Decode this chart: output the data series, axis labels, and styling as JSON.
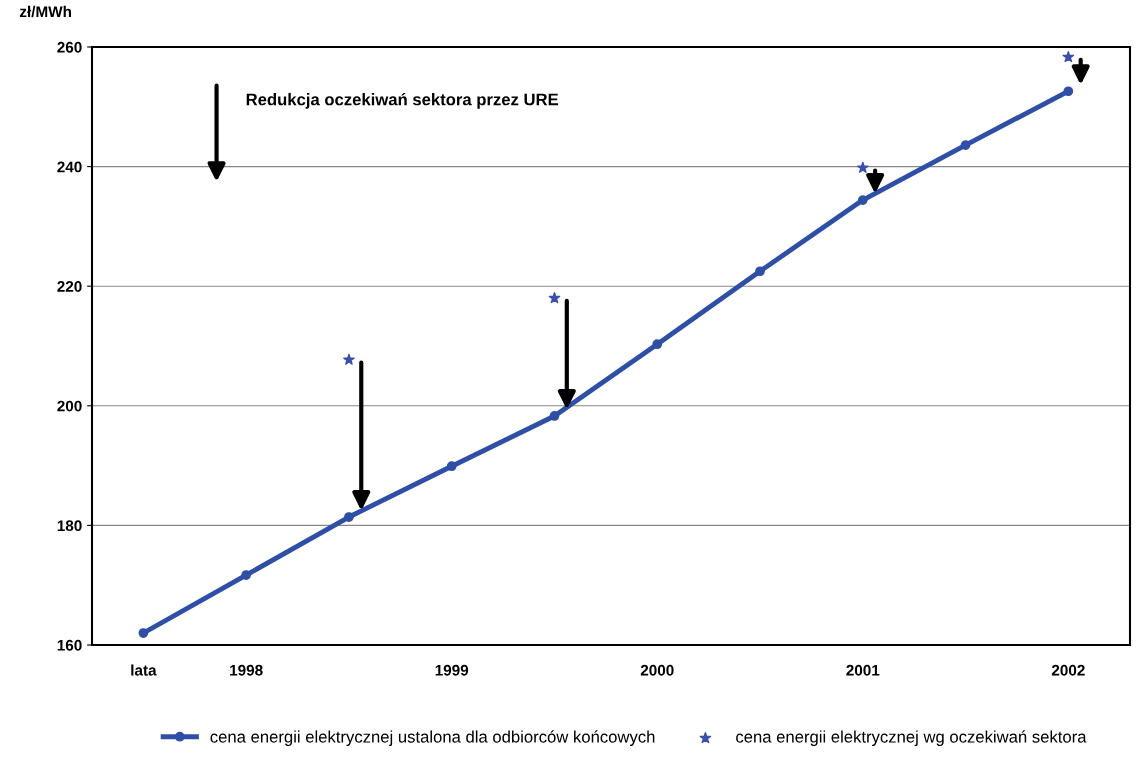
{
  "chart_data": {
    "type": "line",
    "ylabel": "zł/MWh",
    "categories": [
      "lata",
      "1998",
      null,
      "1999",
      null,
      "2000",
      null,
      "2001",
      null,
      "2002"
    ],
    "series": [
      {
        "name": "cena energii elektrycznej ustalona dla odbiorców końcowych",
        "color": "#2e4fa8",
        "marker": "circle",
        "values": [
          162.0,
          171.7,
          181.4,
          189.9,
          198.3,
          210.3,
          222.5,
          234.4,
          243.6,
          252.6
        ]
      },
      {
        "name": "cena energii elektrycznej wg oczekiwań sektora",
        "type": "scatter",
        "color": "#3a4fb0",
        "marker": "star",
        "values": [
          null,
          null,
          207.7,
          null,
          218.0,
          null,
          null,
          239.8,
          null,
          258.3
        ]
      }
    ],
    "annotations": [
      "Redukcja oczekiwań sektora przez URE"
    ],
    "ylim": [
      160,
      260
    ],
    "yticks": [
      160,
      180,
      200,
      220,
      240,
      260
    ],
    "grid": "y",
    "legend": "bottom"
  }
}
